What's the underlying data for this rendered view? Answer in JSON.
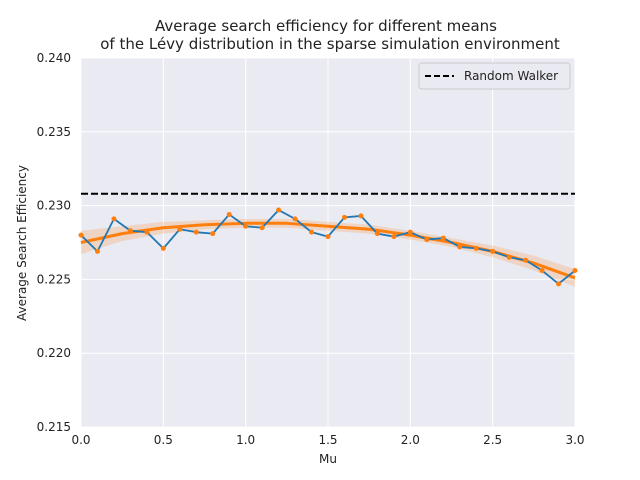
{
  "chart_data": {
    "type": "line",
    "title_line1": "Average search efficiency for different means",
    "title_line2": "of the Lévy distribution in the sparse simulation environment",
    "xlabel": "Mu",
    "ylabel": "Average Search Efficiency",
    "xlim": [
      0.0,
      3.0
    ],
    "ylim": [
      0.215,
      0.24
    ],
    "x_ticks": [
      0.0,
      0.5,
      1.0,
      1.5,
      2.0,
      2.5,
      3.0
    ],
    "x_tick_labels": [
      "0.0",
      "0.5",
      "1.0",
      "1.5",
      "2.0",
      "2.5",
      "3.0"
    ],
    "y_ticks": [
      0.215,
      0.22,
      0.225,
      0.23,
      0.235,
      0.24
    ],
    "y_tick_labels": [
      "0.215",
      "0.220",
      "0.225",
      "0.230",
      "0.235",
      "0.240"
    ],
    "grid": true,
    "legend_position": "top-right",
    "colors": {
      "background": "#eaeaf2",
      "grid": "#ffffff",
      "data_line": "#1f77b4",
      "fit_line": "#ff7f0e",
      "fit_band": "#ff7f0e",
      "random_walker": "#000000"
    },
    "random_walker": {
      "name": "Random Walker",
      "value": 0.2308
    },
    "series": [
      {
        "x": [
          0.0,
          0.1,
          0.2,
          0.3,
          0.4,
          0.5,
          0.6,
          0.7,
          0.8,
          0.9,
          1.0,
          1.1,
          1.2,
          1.3,
          1.4,
          1.5,
          1.6,
          1.7,
          1.8,
          1.9,
          2.0,
          2.1,
          2.2,
          2.3,
          2.4,
          2.5,
          2.6,
          2.7,
          2.8,
          2.9,
          3.0
        ],
        "values": [
          0.228,
          0.2269,
          0.2291,
          0.2283,
          0.2282,
          0.2271,
          0.2284,
          0.2282,
          0.2281,
          0.2294,
          0.2286,
          0.2285,
          0.2297,
          0.2291,
          0.2282,
          0.2279,
          0.2292,
          0.2293,
          0.2281,
          0.2279,
          0.2282,
          0.2277,
          0.2278,
          0.2272,
          0.2271,
          0.2269,
          0.2265,
          0.2263,
          0.2256,
          0.2247,
          0.2256
        ]
      }
    ],
    "fit": {
      "x": [
        0.0,
        0.25,
        0.5,
        0.75,
        1.0,
        1.25,
        1.5,
        1.75,
        2.0,
        2.25,
        2.5,
        2.75,
        3.0
      ],
      "values": [
        0.2275,
        0.2281,
        0.2285,
        0.2287,
        0.2288,
        0.2288,
        0.2286,
        0.2284,
        0.228,
        0.2275,
        0.2269,
        0.2261,
        0.2251
      ],
      "band_half_width": [
        0.0008,
        0.0005,
        0.0004,
        0.0003,
        0.0003,
        0.0003,
        0.0003,
        0.0003,
        0.0003,
        0.0003,
        0.0004,
        0.0005,
        0.0006
      ]
    }
  }
}
